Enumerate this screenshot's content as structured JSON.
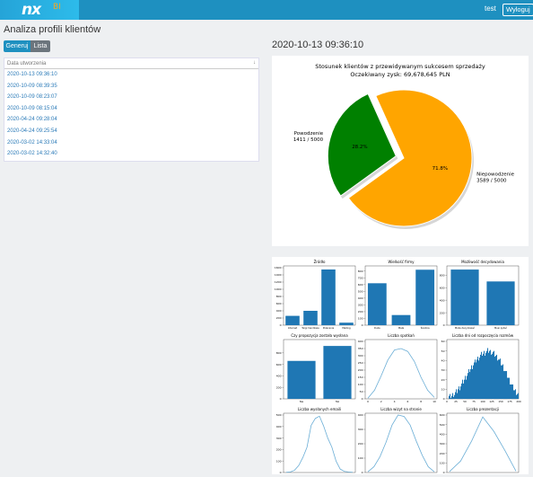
{
  "header": {
    "logo_text": "nx",
    "logo_suffix": "BI",
    "user_name": "test",
    "logout_label": "Wyloguj"
  },
  "page": {
    "title": "Analiza profili klientów",
    "generate_label": "Generuj",
    "list_label": "Lista",
    "selected_date": "2020-10-13 09:36:10"
  },
  "profile_list": {
    "header": "Data utworzenia",
    "sort_icon": "sort-down-icon",
    "items": [
      "2020-10-13 09:36:10",
      "2020-10-09 08:39:35",
      "2020-10-09 08:23:07",
      "2020-10-09 08:15:04",
      "2020-04-24 09:28:04",
      "2020-04-24 09:25:54",
      "2020-03-02 14:33:04",
      "2020-03-02 14:32:40"
    ]
  },
  "chart_data": [
    {
      "type": "pie",
      "title": "Stosunek klientów z przewidywanym sukcesem sprzedaży",
      "subtitle": "Oczekiwany zysk: 69,678,645 PLN",
      "slices": [
        {
          "name": "Powodzenie",
          "count_label": "1411 / 5000",
          "value": 28.2,
          "value_label": "28.2%",
          "color": "#008000",
          "exploded": true
        },
        {
          "name": "Niepowodzenie",
          "count_label": "3589 / 5000",
          "value": 71.8,
          "value_label": "71.8%",
          "color": "#ffa500",
          "exploded": false
        }
      ]
    },
    {
      "type": "bar",
      "title": "Źródło",
      "categories": [
        "Internet",
        "Targi handlowe",
        "Polecenie",
        "Mailing"
      ],
      "values": [
        260,
        400,
        1550,
        70
      ],
      "ylim": [
        0,
        1600
      ],
      "yticks": [
        "0",
        "200",
        "400",
        "600",
        "800",
        "1000",
        "1200",
        "1400",
        "1600"
      ]
    },
    {
      "type": "bar",
      "title": "Wielkość firmy",
      "categories": [
        "Duża",
        "Mała",
        "Średnia"
      ],
      "values": [
        620,
        150,
        820
      ],
      "ylim": [
        0,
        850
      ],
      "yticks": [
        "0",
        "100",
        "200",
        "300",
        "400",
        "500",
        "600",
        "700",
        "800"
      ]
    },
    {
      "type": "bar",
      "title": "Możliwość decydowania",
      "categories": [
        "Może decydować",
        "Musi pytać"
      ],
      "values": [
        890,
        700
      ],
      "ylim": [
        0,
        920
      ],
      "yticks": [
        "0",
        "200",
        "400",
        "600",
        "800"
      ]
    },
    {
      "type": "bar",
      "title": "Czy propozycja została wysłana",
      "categories": [
        "Nie",
        "Tak"
      ],
      "values": [
        660,
        920
      ],
      "ylim": [
        0,
        1000
      ],
      "yticks": [
        "0",
        "200",
        "400",
        "600",
        "800"
      ]
    },
    {
      "type": "line",
      "title": "Liczba spotkań",
      "x": [
        0,
        1,
        2,
        3,
        4,
        5,
        6,
        7,
        8,
        9,
        10
      ],
      "values": [
        5,
        60,
        160,
        270,
        340,
        350,
        330,
        260,
        150,
        60,
        10
      ],
      "ylim": [
        0,
        400
      ],
      "xticks": [
        "0",
        "2",
        "4",
        "6",
        "8",
        "10"
      ],
      "yticks": [
        "0",
        "50",
        "100",
        "150",
        "200",
        "250",
        "300",
        "350",
        "400"
      ]
    },
    {
      "type": "bar",
      "title": "Liczba dni od rozpoczęcia rozmów",
      "histogram": true,
      "xlim": [
        0,
        200
      ],
      "ylim": [
        0,
        60
      ],
      "xticks": [
        "0",
        "25",
        "50",
        "75",
        "100",
        "125",
        "150",
        "175",
        "200"
      ],
      "yticks": [
        "0",
        "10",
        "20",
        "30",
        "40",
        "50",
        "60"
      ],
      "values": [
        1,
        1,
        2,
        2,
        3,
        3,
        4,
        5,
        5,
        6,
        7,
        8,
        10,
        11,
        12,
        14,
        15,
        17,
        18,
        20,
        22,
        23,
        25,
        26,
        28,
        30,
        31,
        33,
        34,
        36,
        37,
        38,
        40,
        41,
        42,
        43,
        44,
        45,
        46,
        47,
        47,
        48,
        48,
        49,
        49,
        50,
        50,
        50,
        49,
        49,
        48,
        48,
        47,
        46,
        45,
        44,
        43,
        42,
        40,
        39,
        37,
        35,
        34,
        32,
        30,
        28,
        26,
        24,
        22,
        20,
        18,
        16,
        14,
        12,
        11,
        9,
        8,
        7,
        6,
        5
      ]
    },
    {
      "type": "line",
      "title": "Liczba wysłanych emaili",
      "x": [
        0,
        1,
        2,
        3,
        4,
        5,
        6,
        7,
        8,
        9,
        10,
        11,
        12,
        13,
        14,
        15,
        16
      ],
      "values": [
        2,
        5,
        20,
        60,
        130,
        220,
        410,
        470,
        490,
        405,
        300,
        220,
        100,
        30,
        10,
        5,
        2
      ],
      "ylim": [
        0,
        500
      ],
      "xticks": [
        "0",
        "2",
        "4",
        "6",
        "8",
        "10",
        "12",
        "14",
        "16"
      ],
      "yticks": [
        "0",
        "100",
        "200",
        "300",
        "400",
        "500"
      ]
    },
    {
      "type": "line",
      "title": "Liczba wizyt na stronie",
      "x": [
        0,
        1,
        2,
        3,
        4,
        5,
        6,
        7,
        8,
        9,
        10,
        11
      ],
      "values": [
        5,
        40,
        110,
        210,
        330,
        400,
        390,
        330,
        220,
        120,
        40,
        5
      ],
      "ylim": [
        0,
        400
      ],
      "xticks": [
        "0",
        "2",
        "4",
        "6",
        "8",
        "10"
      ],
      "yticks": [
        "0",
        "100",
        "200",
        "300",
        "400"
      ]
    },
    {
      "type": "line",
      "title": "Liczba prezentacji",
      "x": [
        0,
        1,
        2,
        3,
        4,
        5,
        6
      ],
      "values": [
        10,
        120,
        330,
        580,
        430,
        230,
        15
      ],
      "ylim": [
        0,
        600
      ],
      "xticks": [
        "0",
        "1",
        "2",
        "3",
        "4",
        "5",
        "6"
      ],
      "yticks": [
        "0",
        "100",
        "200",
        "300",
        "400",
        "500",
        "600"
      ]
    }
  ],
  "colors": {
    "topbar": "#1e90c0",
    "link": "#2a7ab8",
    "bar": "#1f77b4",
    "line": "#6baed6",
    "success": "#008000",
    "failure": "#ffa500"
  }
}
